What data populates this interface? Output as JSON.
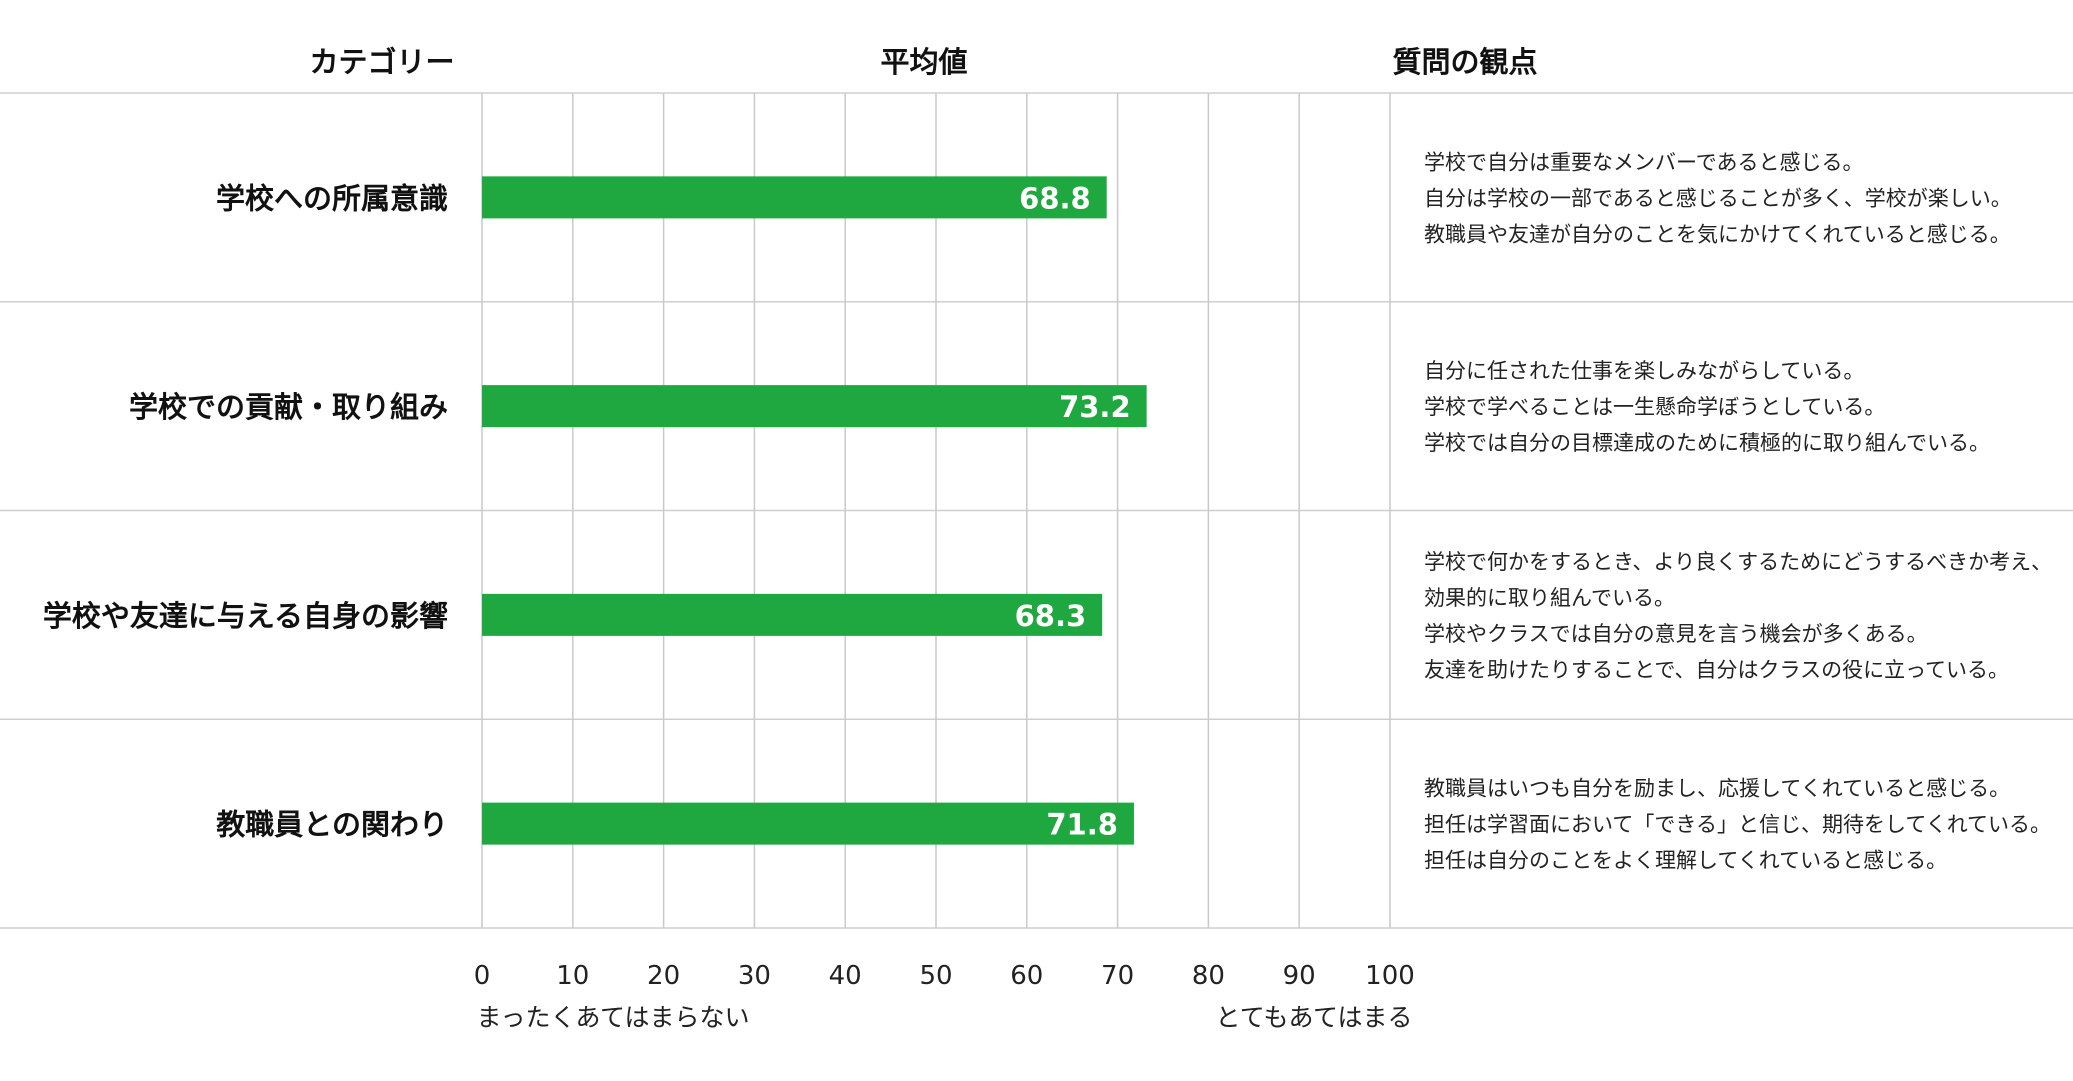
{
  "chart_data": {
    "type": "bar",
    "orientation": "horizontal",
    "headers": {
      "category": "カテゴリー",
      "value": "平均値",
      "perspective": "質問の観点"
    },
    "categories": [
      "学校への所属意識",
      "学校での貢献・取り組み",
      "学校や友達に与える自身の影響",
      "教職員との関わり"
    ],
    "values": [
      68.8,
      73.2,
      68.3,
      71.8
    ],
    "value_labels": [
      "68.8",
      "73.2",
      "68.3",
      "71.8"
    ],
    "xlim": [
      0,
      100
    ],
    "x_ticks": [
      "0",
      "10",
      "20",
      "30",
      "40",
      "50",
      "60",
      "70",
      "80",
      "90",
      "100"
    ],
    "x_tick_values": [
      0,
      10,
      20,
      30,
      40,
      50,
      60,
      70,
      80,
      90,
      100
    ],
    "scale_labels": {
      "low": "まったくあてはまらない",
      "high": "とてもあてはまる"
    },
    "questions": [
      [
        "学校で自分は重要なメンバーであると感じる。",
        "自分は学校の一部であると感じることが多く、学校が楽しい。",
        "教職員や友達が自分のことを気にかけてくれていると感じる。"
      ],
      [
        "自分に任された仕事を楽しみながらしている。",
        "学校で学べることは一生懸命学ぼうとしている。",
        "学校では自分の目標達成のために積極的に取り組んでいる。"
      ],
      [
        "学校で何かをするとき、より良くするためにどうするべきか考え、",
        "効果的に取り組んでいる。",
        "学校やクラスでは自分の意見を言う機会が多くある。",
        "友達を助けたりすることで、自分はクラスの役に立っている。"
      ],
      [
        "教職員はいつも自分を励まし、応援してくれていると感じる。",
        "担任は学習面において「できる」と信じ、期待をしてくれている。",
        "担任は自分のことをよく理解してくれていると感じる。"
      ]
    ],
    "bar_color": "#1fa83f",
    "grid": true,
    "legend": "none"
  }
}
